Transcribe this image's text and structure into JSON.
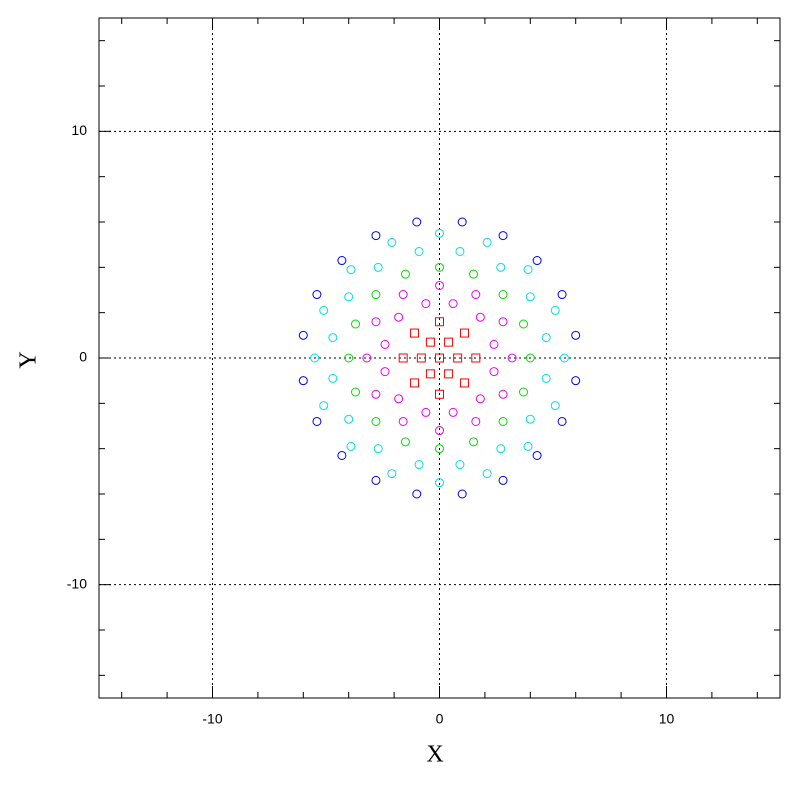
{
  "chart_data": {
    "type": "scatter",
    "x_label": "X",
    "y_label": "Y",
    "xlim": [
      -15,
      15
    ],
    "ylim": [
      -15,
      15
    ],
    "xticks": [
      -10,
      0,
      10
    ],
    "yticks": [
      -10,
      0,
      10
    ],
    "xminorticks": [
      -14,
      -12,
      -8,
      -6,
      -4,
      -2,
      2,
      4,
      6,
      8,
      12,
      14
    ],
    "yminorticks": [
      -14,
      -12,
      -8,
      -6,
      -4,
      -2,
      2,
      4,
      6,
      8,
      12,
      14
    ],
    "grid": true,
    "label_color": "#2222cc",
    "series": [
      {
        "color": "#ff0000",
        "marker": "square",
        "x": [
          0,
          0.8,
          0.4,
          -0.4,
          -0.8,
          -0.4,
          0.4,
          1.6,
          1.1,
          0,
          -1.1,
          -1.6,
          -1.1,
          0,
          1.1
        ],
        "values": [
          0,
          0,
          0.7,
          0.7,
          0,
          -0.7,
          -0.7,
          0,
          1.1,
          1.6,
          1.1,
          0,
          -1.1,
          -1.6,
          -1.1
        ]
      },
      {
        "color": "#ee00ee",
        "marker": "circle",
        "x": [
          2.4,
          1.8,
          0.6,
          -0.6,
          -1.8,
          -2.4,
          -2.4,
          -1.8,
          -0.6,
          0.6,
          1.8,
          2.4,
          3.2,
          2.8,
          1.6,
          0,
          -1.6,
          -2.8,
          -3.2,
          -2.8,
          -1.6,
          0,
          1.6,
          2.8
        ],
        "values": [
          0.6,
          1.8,
          2.4,
          2.4,
          1.8,
          0.6,
          -0.6,
          -1.8,
          -2.4,
          -2.4,
          -1.8,
          -0.6,
          0,
          1.6,
          2.8,
          3.2,
          2.8,
          1.6,
          0,
          -1.6,
          -2.8,
          -3.2,
          -2.8,
          -1.6
        ]
      },
      {
        "color": "#00dd00",
        "marker": "circle",
        "x": [
          4,
          3.7,
          2.8,
          1.5,
          0,
          -1.5,
          -2.8,
          -3.7,
          -4,
          -3.7,
          -2.8,
          -1.5,
          0,
          1.5,
          2.8,
          3.7
        ],
        "values": [
          0,
          1.5,
          2.8,
          3.7,
          4,
          3.7,
          2.8,
          1.5,
          0,
          -1.5,
          -2.8,
          -3.7,
          -4,
          -3.7,
          -2.8,
          -1.5
        ]
      },
      {
        "color": "#00e0e0",
        "marker": "circle",
        "x": [
          4.7,
          4.0,
          2.7,
          0.9,
          -0.9,
          -2.7,
          -4.0,
          -4.7,
          -4.7,
          -4.0,
          -2.7,
          -0.9,
          0.9,
          2.7,
          4.0,
          4.7,
          5.5,
          5.1,
          3.9,
          2.1,
          0,
          -2.1,
          -3.9,
          -5.1,
          -5.5,
          -5.1,
          -3.9,
          -2.1,
          0,
          2.1,
          3.9,
          5.1
        ],
        "values": [
          0.9,
          2.7,
          4.0,
          4.7,
          4.7,
          4.0,
          2.7,
          0.9,
          -0.9,
          -2.7,
          -4.0,
          -4.7,
          -4.7,
          -4.0,
          -2.7,
          -0.9,
          0,
          2.1,
          3.9,
          5.1,
          5.5,
          5.1,
          3.9,
          2.1,
          0,
          -2.1,
          -3.9,
          -5.1,
          -5.5,
          -5.1,
          -3.9,
          -2.1
        ]
      },
      {
        "color": "#0000ee",
        "marker": "circle",
        "x": [
          6.0,
          5.4,
          4.3,
          2.8,
          1.0,
          -1.0,
          -2.8,
          -4.3,
          -5.4,
          -6.0,
          -6.0,
          -5.4,
          -4.3,
          -2.8,
          -1.0,
          1.0,
          2.8,
          4.3,
          5.4,
          6.0
        ],
        "values": [
          1.0,
          2.8,
          4.3,
          5.4,
          6.0,
          6.0,
          5.4,
          4.3,
          2.8,
          1.0,
          -1.0,
          -2.8,
          -4.3,
          -5.4,
          -6.0,
          -6.0,
          -5.4,
          -4.3,
          -2.8,
          -1.0
        ]
      }
    ]
  }
}
